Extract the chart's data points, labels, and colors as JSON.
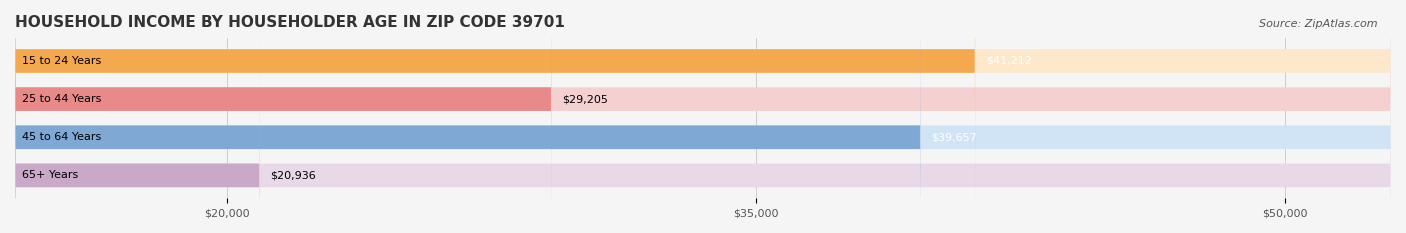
{
  "title": "HOUSEHOLD INCOME BY HOUSEHOLDER AGE IN ZIP CODE 39701",
  "source": "Source: ZipAtlas.com",
  "categories": [
    "15 to 24 Years",
    "25 to 44 Years",
    "45 to 64 Years",
    "65+ Years"
  ],
  "values": [
    41212,
    29205,
    39657,
    20936
  ],
  "bar_colors": [
    "#F5A94E",
    "#E8898A",
    "#7FA8D5",
    "#C9A8C8"
  ],
  "bar_bg_colors": [
    "#FDE8CC",
    "#F5D0D0",
    "#D0E4F5",
    "#E8D8E8"
  ],
  "value_labels": [
    "$41,212",
    "$29,205",
    "$39,657",
    "$20,936"
  ],
  "x_ticks": [
    20000,
    35000,
    50000
  ],
  "x_tick_labels": [
    "$20,000",
    "$35,000",
    "$50,000"
  ],
  "xlim_min": 14000,
  "xlim_max": 53000,
  "title_fontsize": 11,
  "source_fontsize": 8,
  "label_fontsize": 8,
  "tick_fontsize": 8,
  "background_color": "#f5f5f5",
  "bar_bg_color": "#eeeeee"
}
